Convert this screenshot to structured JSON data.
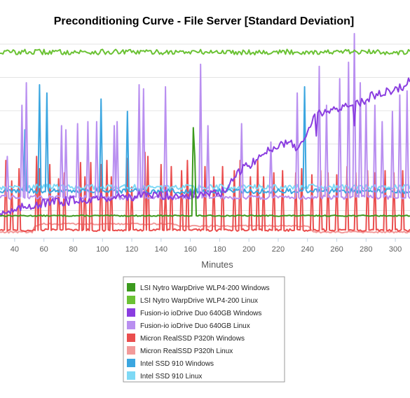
{
  "chart_data": {
    "type": "line",
    "title": "Preconditioning Curve - File Server [Standard Deviation]",
    "xlabel": "Minutes",
    "ylabel": "",
    "xlim": [
      30,
      310
    ],
    "ylim": [
      0,
      100
    ],
    "x_ticks": [
      40,
      60,
      80,
      100,
      120,
      140,
      160,
      180,
      200,
      220,
      240,
      260,
      280,
      300
    ],
    "grid": "horizontal",
    "legend_position": "bottom",
    "series": [
      {
        "name": "LSI Nytro WarpDrive WLP4-200 Windows",
        "color": "#3c9a1e",
        "style": "flat",
        "base": 11,
        "noise": 0.3,
        "start": 30,
        "end": 310,
        "spikes": [
          [
            162,
            54
          ],
          [
            163,
            40
          ]
        ]
      },
      {
        "name": "LSI Nytro WarpDrive WLP4-200 Linux",
        "color": "#6bc234",
        "style": "flat",
        "base": 91,
        "noise": 1.3,
        "start": 30,
        "end": 310,
        "spikes": []
      },
      {
        "name": "Fusion-io ioDrive Duo 640GB Windows",
        "color": "#8a3de0",
        "style": "ramp",
        "points": [
          [
            30,
            13
          ],
          [
            40,
            13
          ],
          [
            48,
            16
          ],
          [
            60,
            17
          ],
          [
            100,
            20
          ],
          [
            140,
            21
          ],
          [
            160,
            21
          ],
          [
            180,
            22
          ],
          [
            185,
            24
          ],
          [
            195,
            34
          ],
          [
            205,
            38
          ],
          [
            215,
            44
          ],
          [
            225,
            47
          ],
          [
            235,
            44
          ],
          [
            245,
            60
          ],
          [
            255,
            62
          ],
          [
            265,
            65
          ],
          [
            275,
            66
          ],
          [
            285,
            70
          ],
          [
            295,
            72
          ],
          [
            305,
            74
          ],
          [
            310,
            78
          ]
        ],
        "noise": 2.2,
        "start": 30,
        "end": 310,
        "spikes": [
          [
            246,
            50
          ],
          [
            272,
            55
          ]
        ]
      },
      {
        "name": "Fusion-io ioDrive Duo 640GB Linux",
        "color": "#b98ff0",
        "style": "flat",
        "base": 20,
        "noise": 1.0,
        "start": 30,
        "end": 310,
        "spikes": [
          [
            35,
            40
          ],
          [
            45,
            65
          ],
          [
            48,
            76
          ],
          [
            72,
            55
          ],
          [
            75,
            53
          ],
          [
            83,
            56
          ],
          [
            90,
            57
          ],
          [
            96,
            57
          ],
          [
            108,
            55
          ],
          [
            110,
            57
          ],
          [
            125,
            75
          ],
          [
            128,
            73
          ],
          [
            143,
            74
          ],
          [
            167,
            85
          ],
          [
            172,
            55
          ],
          [
            195,
            56
          ],
          [
            215,
            47
          ],
          [
            233,
            71
          ],
          [
            248,
            84
          ],
          [
            253,
            65
          ],
          [
            262,
            78
          ],
          [
            268,
            86
          ],
          [
            272,
            100
          ],
          [
            276,
            76
          ],
          [
            280,
            66
          ],
          [
            286,
            65
          ],
          [
            291,
            57
          ],
          [
            298,
            62
          ],
          [
            303,
            70
          ],
          [
            308,
            72
          ]
        ]
      },
      {
        "name": "Micron RealSSD P320h Windows",
        "color": "#ea4e4e",
        "style": "flat",
        "base": 4,
        "noise": 0.6,
        "start": 30,
        "end": 310,
        "spikes": [
          [
            34,
            38
          ],
          [
            38,
            28
          ],
          [
            43,
            34
          ],
          [
            55,
            40
          ],
          [
            57,
            34
          ],
          [
            64,
            36
          ],
          [
            70,
            29
          ],
          [
            74,
            32
          ],
          [
            85,
            37
          ],
          [
            88,
            30
          ],
          [
            92,
            37
          ],
          [
            99,
            36
          ],
          [
            103,
            38
          ],
          [
            106,
            30
          ],
          [
            117,
            39
          ],
          [
            120,
            25
          ],
          [
            129,
            42
          ],
          [
            131,
            40
          ],
          [
            140,
            36
          ],
          [
            143,
            25
          ],
          [
            147,
            35
          ],
          [
            154,
            33
          ],
          [
            158,
            38
          ],
          [
            170,
            35
          ],
          [
            176,
            30
          ],
          [
            182,
            35
          ],
          [
            190,
            33
          ],
          [
            194,
            38
          ],
          [
            201,
            30
          ],
          [
            206,
            38
          ],
          [
            210,
            30
          ],
          [
            217,
            32
          ],
          [
            223,
            33
          ],
          [
            232,
            32
          ],
          [
            236,
            34
          ],
          [
            243,
            31
          ],
          [
            249,
            33
          ],
          [
            254,
            32
          ],
          [
            260,
            31
          ],
          [
            267,
            35
          ],
          [
            273,
            32
          ],
          [
            281,
            33
          ],
          [
            286,
            32
          ],
          [
            293,
            33
          ],
          [
            299,
            32
          ],
          [
            305,
            33
          ]
        ]
      },
      {
        "name": "Micron RealSSD P320h Linux",
        "color": "#f29a9a",
        "style": "ramp",
        "points": [
          [
            30,
            3
          ],
          [
            52,
            3
          ],
          [
            54,
            6
          ],
          [
            60,
            7
          ],
          [
            150,
            7
          ],
          [
            152,
            6
          ],
          [
            240,
            6
          ],
          [
            244,
            3
          ],
          [
            310,
            3
          ]
        ],
        "noise": 0.4,
        "start": 30,
        "end": 310,
        "spikes": []
      },
      {
        "name": "Intel SSD 910 Windows",
        "color": "#3ba6e0",
        "style": "flat",
        "base": 23,
        "noise": 1.2,
        "start": 30,
        "end": 310,
        "spikes": [
          [
            47,
            53
          ],
          [
            57,
            75
          ],
          [
            62,
            71
          ],
          [
            99,
            68
          ],
          [
            117,
            62
          ],
          [
            238,
            74
          ]
        ]
      },
      {
        "name": "Intel SSD 910 Linux",
        "color": "#7ed9f5",
        "style": "flat",
        "base": 25,
        "noise": 1.3,
        "start": 30,
        "end": 310,
        "spikes": []
      }
    ]
  }
}
